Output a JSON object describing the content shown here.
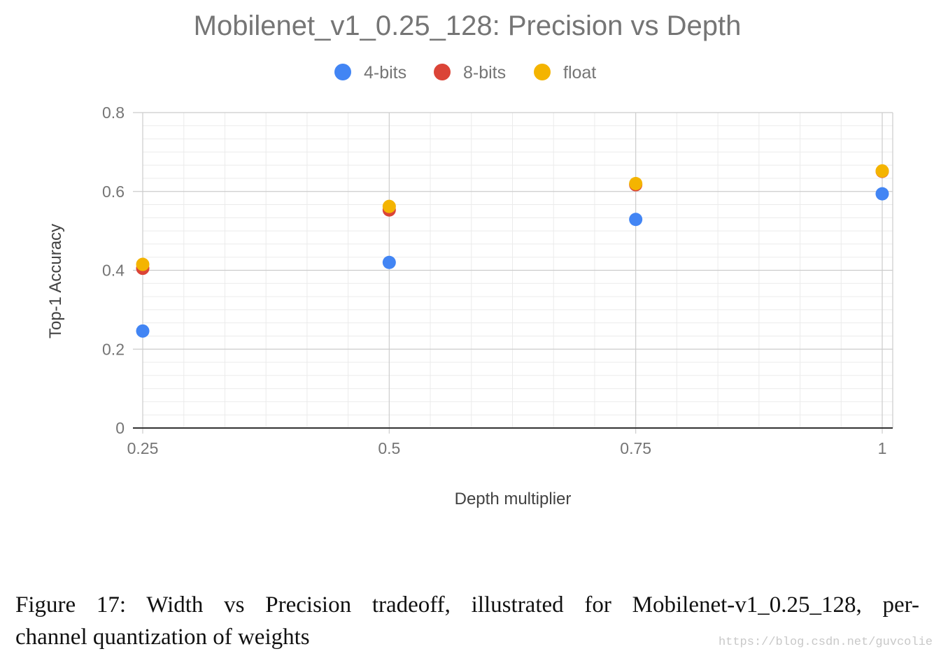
{
  "chart_data": {
    "type": "scatter",
    "title": "Mobilenet_v1_0.25_128: Precision vs Depth",
    "xlabel": "Depth multiplier",
    "ylabel": "Top-1 Accuracy",
    "xlim": [
      0.25,
      1
    ],
    "ylim": [
      0,
      0.8
    ],
    "x_ticks": [
      "0.25",
      "0.5",
      "0.75",
      "1"
    ],
    "y_ticks": [
      "0",
      "0.2",
      "0.4",
      "0.6",
      "0.8"
    ],
    "grid": true,
    "legend_position": "top",
    "series": [
      {
        "name": "4-bits",
        "color": "#4285f4",
        "x": [
          0.25,
          0.5,
          0.75,
          1
        ],
        "y": [
          0.246,
          0.42,
          0.529,
          0.594
        ]
      },
      {
        "name": "8-bits",
        "color": "#db4437",
        "x": [
          0.25,
          0.5,
          0.75,
          1
        ],
        "y": [
          0.405,
          0.553,
          0.617,
          0.651
        ]
      },
      {
        "name": "float",
        "color": "#f4b400",
        "x": [
          0.25,
          0.5,
          0.75,
          1
        ],
        "y": [
          0.415,
          0.562,
          0.62,
          0.652
        ]
      }
    ]
  },
  "caption": {
    "line1": "Figure 17:  Width vs Precision tradeoff, illustrated for Mobilenet-v1_0.25_128, per-",
    "line2": "channel quantization of weights"
  },
  "watermark": "https://blog.csdn.net/guvcolie"
}
